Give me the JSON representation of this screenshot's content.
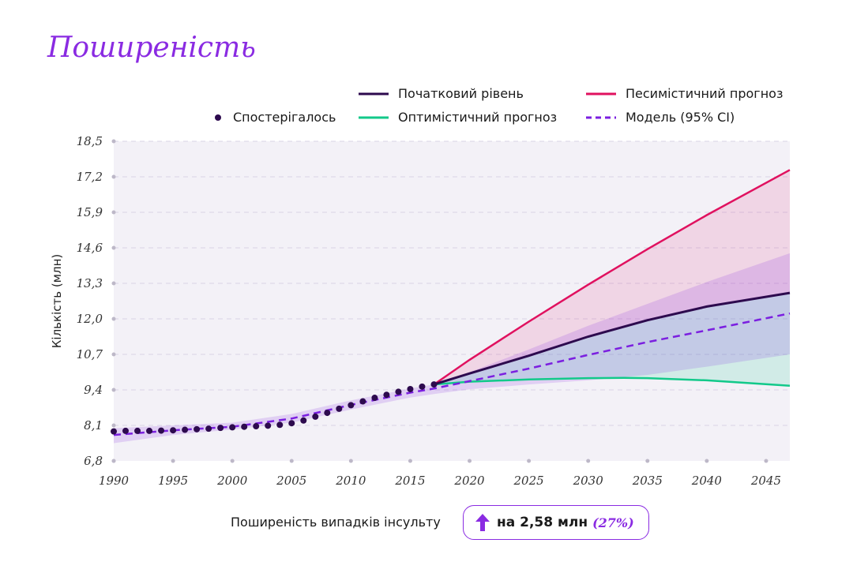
{
  "page": {
    "title": "Поширеність",
    "footer_label": "Поширеність випадків інсульту",
    "change_badge": {
      "text": "на 2,58 млн",
      "percent": "(27%)",
      "icon": "arrow-up-icon"
    }
  },
  "colors": {
    "observed": "#2d0a4e",
    "baseline": "#2d0a4e",
    "pessimistic": "#e0115f",
    "optimistic": "#12c98a",
    "model": "#7b1fe0",
    "accent": "#8a2be2"
  },
  "legend": [
    {
      "key": "baseline",
      "label": "Початковий рівень",
      "style": "solid"
    },
    {
      "key": "pessimistic",
      "label": "Песимістичний прогноз",
      "style": "solid"
    },
    {
      "key": "observed",
      "label": "Спостерігалось",
      "style": "dot"
    },
    {
      "key": "optimistic",
      "label": "Оптимістичний прогноз",
      "style": "solid"
    },
    {
      "key": "model",
      "label": "Модель (95% CI)",
      "style": "dashed"
    }
  ],
  "chart_data": {
    "type": "line",
    "ylabel": "Кількість (млн)",
    "xlim": [
      1990,
      2047
    ],
    "ylim": [
      6.8,
      18.5
    ],
    "x_ticks": [
      1990,
      1995,
      2000,
      2005,
      2010,
      2015,
      2020,
      2025,
      2030,
      2035,
      2040,
      2045
    ],
    "x_tick_labels": [
      "1990",
      "1995",
      "2000",
      "2005",
      "2010",
      "2015",
      "2020",
      "2025",
      "2030",
      "2035",
      "2040",
      "2045"
    ],
    "y_ticks": [
      6.8,
      8.1,
      9.4,
      10.7,
      12.0,
      13.3,
      14.6,
      15.9,
      17.2,
      18.5
    ],
    "y_tick_labels": [
      "6,8",
      "8,1",
      "9,4",
      "10,7",
      "12,0",
      "13,3",
      "14,6",
      "15,9",
      "17,2",
      "18,5"
    ],
    "grid": true,
    "observed": {
      "name": "Спостерігалось",
      "x": [
        1990,
        1991,
        1992,
        1993,
        1994,
        1995,
        1996,
        1997,
        1998,
        1999,
        2000,
        2001,
        2002,
        2003,
        2004,
        2005,
        2006,
        2007,
        2008,
        2009,
        2010,
        2011,
        2012,
        2013,
        2014,
        2015,
        2016,
        2017
      ],
      "y": [
        7.88,
        7.9,
        7.9,
        7.9,
        7.91,
        7.92,
        7.94,
        7.96,
        7.98,
        8.01,
        8.03,
        8.05,
        8.07,
        8.09,
        8.12,
        8.18,
        8.28,
        8.42,
        8.56,
        8.71,
        8.84,
        8.98,
        9.11,
        9.22,
        9.33,
        9.43,
        9.52,
        9.6
      ]
    },
    "series": [
      {
        "name": "Модель (95% CI)",
        "key": "model",
        "x": [
          1990,
          1995,
          2000,
          2005,
          2010,
          2015,
          2017,
          2020,
          2025,
          2030,
          2035,
          2040,
          2047
        ],
        "y": [
          7.75,
          7.92,
          8.05,
          8.35,
          8.85,
          9.3,
          9.45,
          9.72,
          10.18,
          10.68,
          11.15,
          11.58,
          12.2
        ],
        "lower": [
          7.45,
          7.75,
          7.95,
          8.2,
          8.68,
          9.12,
          9.25,
          9.42,
          9.6,
          9.75,
          9.95,
          10.25,
          10.7
        ],
        "upper": [
          8.0,
          8.1,
          8.2,
          8.52,
          9.02,
          9.45,
          9.6,
          10.05,
          10.88,
          11.75,
          12.55,
          13.35,
          14.4
        ]
      },
      {
        "name": "Початковий рівень",
        "key": "baseline",
        "x": [
          2017,
          2020,
          2025,
          2030,
          2035,
          2040,
          2047
        ],
        "y": [
          9.6,
          10.0,
          10.65,
          11.35,
          11.95,
          12.45,
          12.95
        ]
      },
      {
        "name": "Песимістичний прогноз",
        "key": "pessimistic",
        "x": [
          2017,
          2020,
          2025,
          2030,
          2035,
          2040,
          2047
        ],
        "y": [
          9.6,
          10.5,
          11.9,
          13.25,
          14.55,
          15.8,
          17.45
        ]
      },
      {
        "name": "Оптимістичний прогноз",
        "key": "optimistic",
        "x": [
          2017,
          2020,
          2025,
          2030,
          2033,
          2035,
          2040,
          2047
        ],
        "y": [
          9.6,
          9.7,
          9.78,
          9.83,
          9.84,
          9.83,
          9.75,
          9.55
        ]
      }
    ]
  }
}
